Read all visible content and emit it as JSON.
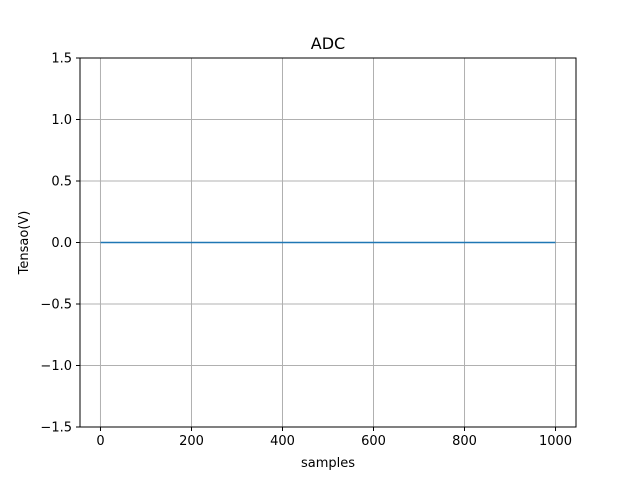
{
  "chart_data": {
    "type": "line",
    "title": "ADC",
    "xlabel": "samples",
    "ylabel": "Tensao(V)",
    "xlim": [
      -45,
      1045
    ],
    "ylim": [
      -1.5,
      1.5
    ],
    "xticks": [
      0,
      200,
      400,
      600,
      800,
      1000
    ],
    "xtick_labels": [
      "0",
      "200",
      "400",
      "600",
      "800",
      "1000"
    ],
    "yticks": [
      -1.5,
      -1.0,
      -0.5,
      0.0,
      0.5,
      1.0,
      1.5
    ],
    "ytick_labels": [
      "−1.5",
      "−1.0",
      "−0.5",
      "0.0",
      "0.5",
      "1.0",
      "1.5"
    ],
    "grid": true,
    "series": [
      {
        "color": "#1f77b4",
        "x": [
          0,
          1000
        ],
        "y": [
          0.0,
          0.0
        ]
      }
    ]
  }
}
